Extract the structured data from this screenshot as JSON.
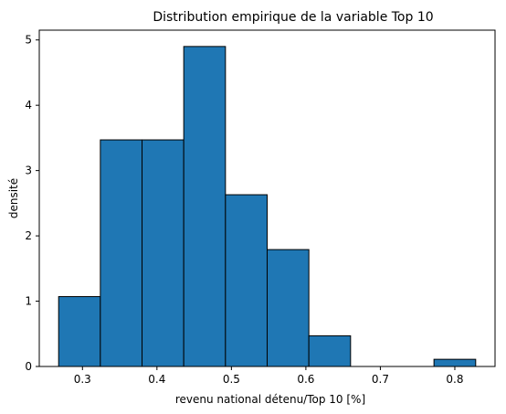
{
  "chart_data": {
    "type": "bar",
    "title": "Distribution empirique de la variable Top 10",
    "xlabel": "revenu national détenu/Top 10 [%]",
    "ylabel": "densité",
    "xlim": [
      0.242,
      0.854
    ],
    "ylim": [
      0,
      5.15
    ],
    "grid": false,
    "legend": "none",
    "bar_color": "#1f77b4",
    "edge_color": "#000000",
    "bins": [
      {
        "x0": 0.268,
        "x1": 0.324,
        "value": 1.07
      },
      {
        "x0": 0.324,
        "x1": 0.38,
        "value": 3.47
      },
      {
        "x0": 0.38,
        "x1": 0.436,
        "value": 3.47
      },
      {
        "x0": 0.436,
        "x1": 0.492,
        "value": 4.9
      },
      {
        "x0": 0.492,
        "x1": 0.548,
        "value": 2.63
      },
      {
        "x0": 0.548,
        "x1": 0.604,
        "value": 1.79
      },
      {
        "x0": 0.604,
        "x1": 0.66,
        "value": 0.47
      },
      {
        "x0": 0.66,
        "x1": 0.716,
        "value": 0
      },
      {
        "x0": 0.716,
        "x1": 0.772,
        "value": 0
      },
      {
        "x0": 0.772,
        "x1": 0.828,
        "value": 0.11
      }
    ],
    "xticks": [
      0.3,
      0.4,
      0.5,
      0.6,
      0.7,
      0.8
    ],
    "xtick_labels": [
      "0.3",
      "0.4",
      "0.5",
      "0.6",
      "0.7",
      "0.8"
    ],
    "yticks": [
      0,
      1,
      2,
      3,
      4,
      5
    ],
    "ytick_labels": [
      "0",
      "1",
      "2",
      "3",
      "4",
      "5"
    ]
  }
}
